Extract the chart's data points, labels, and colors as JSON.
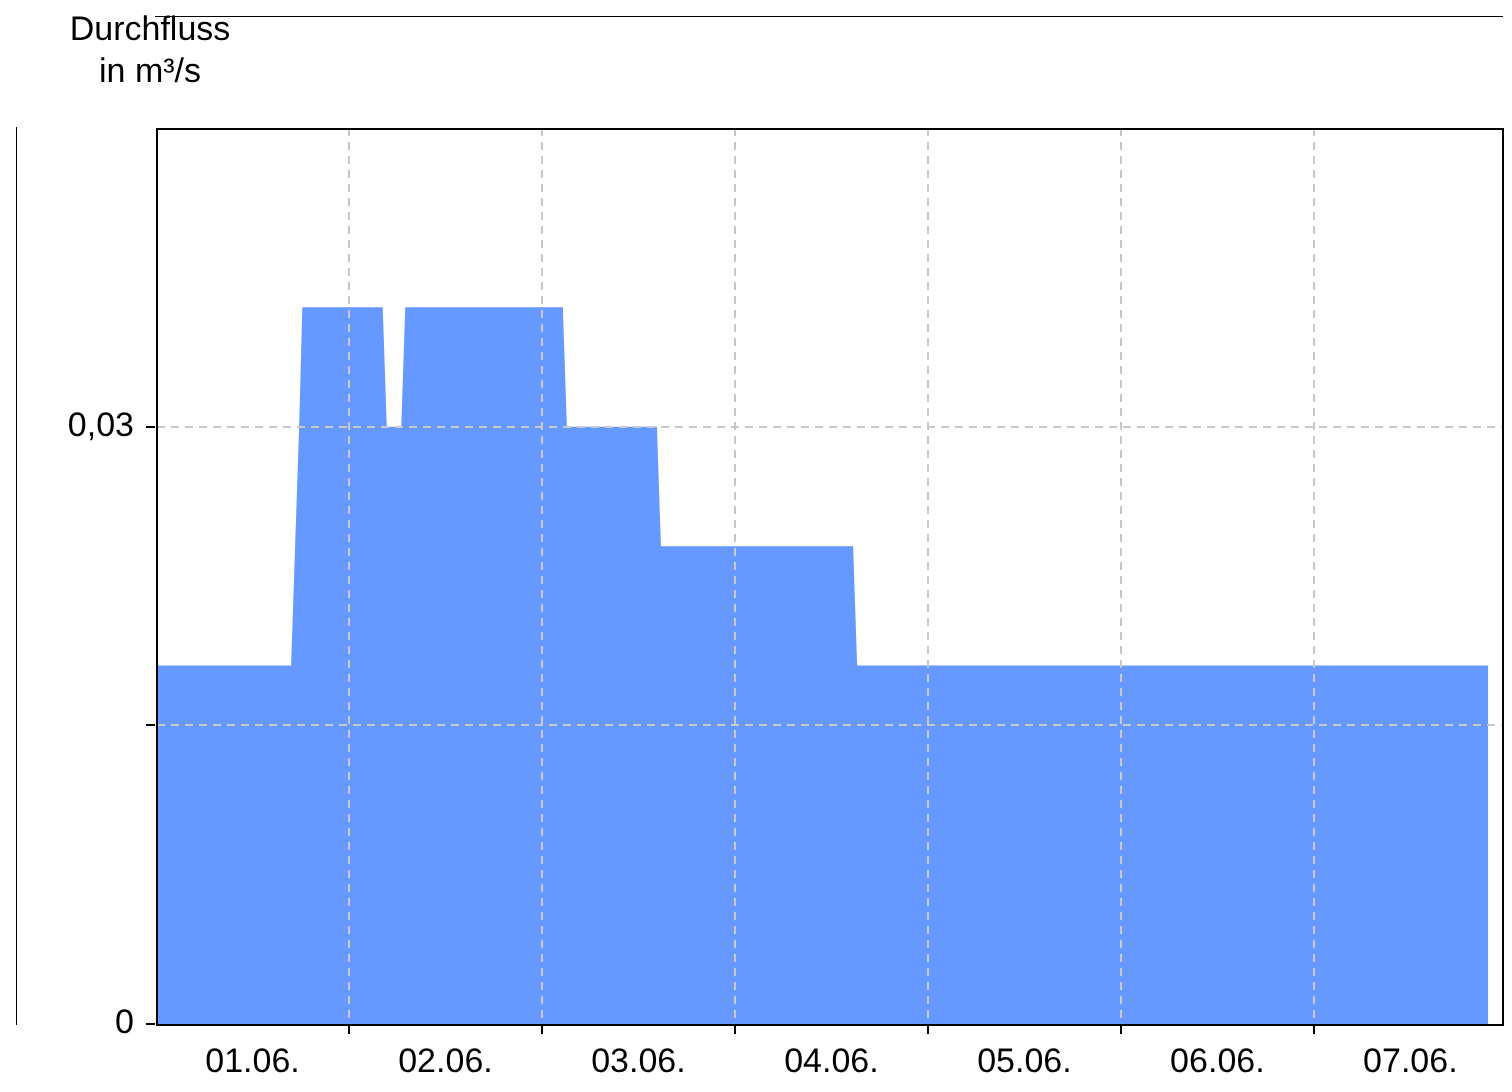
{
  "chart_data": {
    "type": "area",
    "ylabel": "Durchfluss\nin m³/s",
    "x": [
      "--06-01T00:00",
      "--06-01T16:48",
      "--06-01T17:48",
      "--06-01T18:12",
      "--06-02T04:12",
      "--06-02T04:42",
      "--06-02T06:30",
      "--06-02T07:00",
      "--06-03T02:36",
      "--06-03T03:06",
      "--06-03T14:18",
      "--06-03T14:48",
      "--06-04T14:42",
      "--06-04T15:12",
      "--06-07T21:42"
    ],
    "series": [
      {
        "color": "#6699ff",
        "values": [
          0.018,
          0.018,
          0.03,
          0.036,
          0.036,
          0.03,
          0.03,
          0.036,
          0.036,
          0.03,
          0.03,
          0.024,
          0.024,
          0.018,
          0.018
        ]
      }
    ],
    "xlim": [
      "--06-01T00:00",
      "--06-07T23:24"
    ],
    "xticks": [
      {
        "value": "--06-01T12:00",
        "label": "01.06."
      },
      {
        "value": "--06-02",
        "label": null
      },
      {
        "value": "--06-02T12:00",
        "label": "02.06."
      },
      {
        "value": "--06-03",
        "label": null
      },
      {
        "value": "--06-03T12:00",
        "label": "03.06."
      },
      {
        "value": "--06-04",
        "label": null
      },
      {
        "value": "--06-04T12:00",
        "label": "04.06."
      },
      {
        "value": "--06-05",
        "label": null
      },
      {
        "value": "--06-05T12:00",
        "label": "05.06."
      },
      {
        "value": "--06-06",
        "label": null
      },
      {
        "value": "--06-06T12:00",
        "label": "06.06."
      },
      {
        "value": "--06-07",
        "label": null
      },
      {
        "value": "--06-07T12:00",
        "label": "07.06."
      }
    ],
    "ylim": [
      0,
      0.045
    ],
    "yticks": [
      {
        "value": 0,
        "label": "0"
      },
      {
        "value": 0.015,
        "label": null
      },
      {
        "value": 0.03,
        "label": "0,03"
      }
    ],
    "grid": true
  }
}
